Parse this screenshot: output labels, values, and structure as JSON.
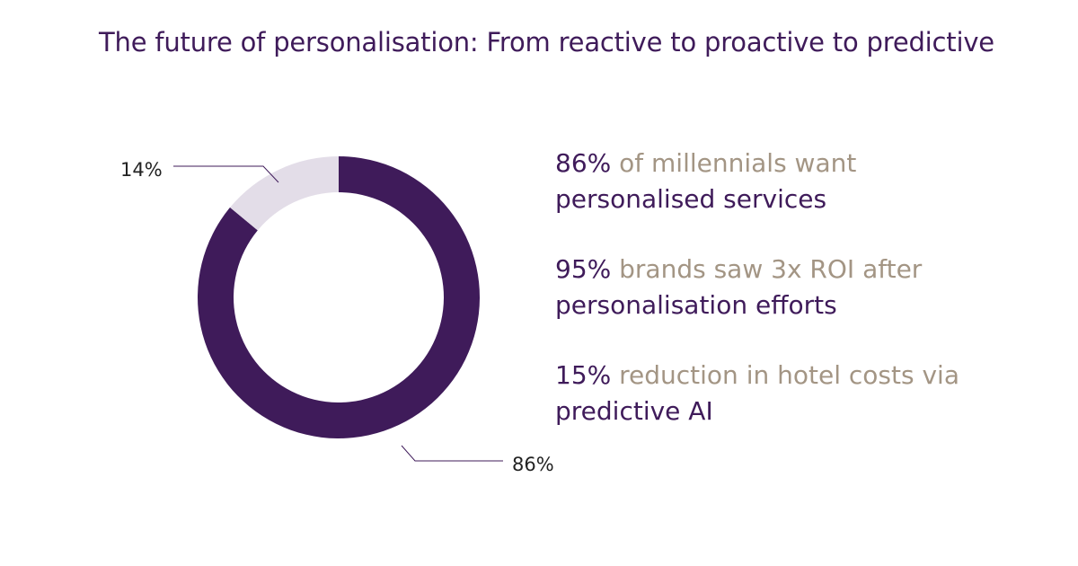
{
  "title": "The future of personalisation: From reactive to proactive to predictive",
  "colors": {
    "primary": "#3f1b5a",
    "secondary": "#e3dde8",
    "accent_text": "#a39584",
    "leader": "#3f1b5a"
  },
  "chart_data": {
    "type": "pie",
    "donut": true,
    "title": "",
    "slices": [
      {
        "value": 86,
        "label": "86%",
        "color": "#3f1b5a"
      },
      {
        "value": 14,
        "label": "14%",
        "color": "#e3dde8"
      }
    ]
  },
  "stats": [
    {
      "number": "86%",
      "gold_text": " of millennials want",
      "purple_text": "personalised services"
    },
    {
      "number": "95%",
      "gold_text": " brands saw 3x ROI after",
      "purple_text": "personalisation efforts"
    },
    {
      "number": "15%",
      "gold_text": " reduction in hotel costs via",
      "purple_text": "predictive AI"
    }
  ]
}
